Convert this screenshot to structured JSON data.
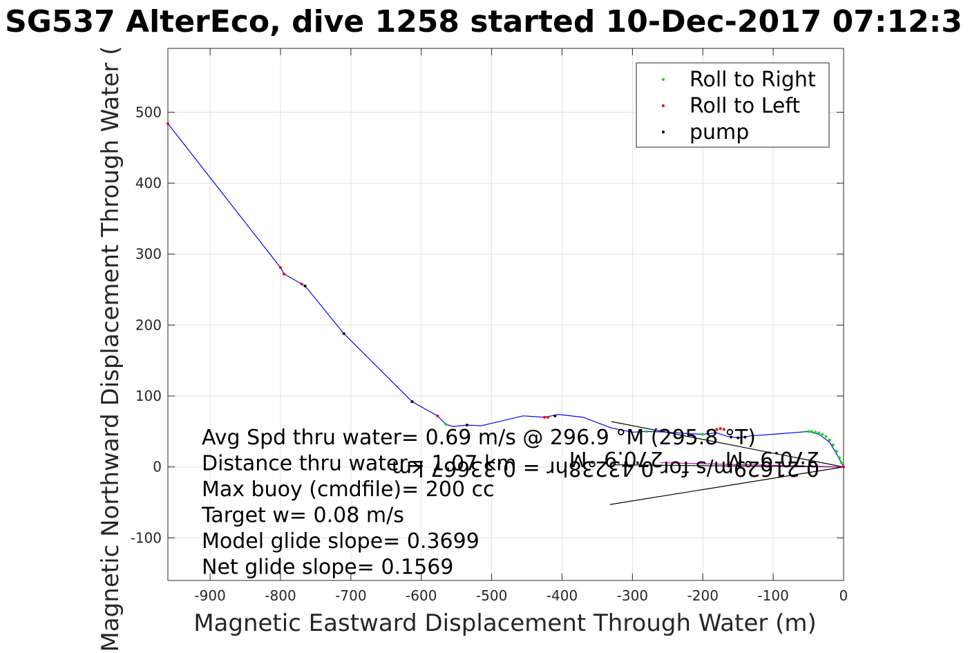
{
  "chart_data": {
    "type": "line",
    "title": "SG537 AlterEco, dive 1258 started 10-Dec-2017 07:12:3",
    "xlabel": "Magnetic Eastward Displacement Through Water (m)",
    "ylabel": "Magnetic Northward Displacement Through Water (",
    "xlim": [
      -960,
      0
    ],
    "ylim": [
      -160,
      590
    ],
    "xticks": [
      -900,
      -800,
      -700,
      -600,
      -500,
      -400,
      -300,
      -200,
      -100,
      0
    ],
    "yticks": [
      -100,
      0,
      100,
      200,
      300,
      400,
      500
    ],
    "grid": true,
    "legend_position": "top-right",
    "legend": [
      {
        "label": "Roll to Right",
        "color": "#00dd00"
      },
      {
        "label": "Roll to Left",
        "color": "#ee0000"
      },
      {
        "label": "pump",
        "color": "#000000"
      }
    ],
    "track": {
      "name": "track",
      "color": "#0000ff",
      "x": [
        -960,
        -800,
        -795,
        -770,
        -765,
        -710,
        -613,
        -577,
        -565,
        -555,
        -535,
        -515,
        -455,
        -425,
        -405,
        -370,
        -330,
        -300,
        -280,
        -250,
        -220,
        -200,
        -180,
        -165,
        -150,
        -130,
        -100,
        -75,
        -50,
        -35,
        -20,
        -8,
        0
      ],
      "y": [
        484,
        281,
        272,
        258,
        255,
        188,
        92,
        72,
        60,
        57,
        59,
        58,
        72,
        70,
        74,
        70,
        55,
        49,
        50,
        49,
        47,
        46,
        48,
        43,
        41,
        44,
        46,
        48,
        50,
        46,
        35,
        15,
        0
      ]
    },
    "roll_right_points": {
      "x": [
        -565,
        -290,
        -280,
        -200,
        -50,
        -45,
        -40,
        -35,
        -30,
        -25,
        -20,
        -15,
        -10,
        -6,
        -3
      ],
      "y": [
        60,
        49,
        50,
        46,
        50,
        50,
        49,
        48,
        46,
        43,
        38,
        31,
        22,
        13,
        6
      ]
    },
    "roll_left_points": {
      "x": [
        -960,
        -800,
        -795,
        -770,
        -577,
        -425,
        -420,
        -255,
        -180,
        -175,
        -170,
        0
      ],
      "y": [
        484,
        281,
        272,
        258,
        72,
        70,
        70,
        52,
        53,
        54,
        53,
        0
      ]
    },
    "pump_points": {
      "x": [
        -765,
        -710,
        -613,
        -535,
        -410,
        -160,
        -150,
        -140
      ],
      "y": [
        255,
        188,
        92,
        59,
        72,
        42,
        41,
        42
      ]
    },
    "current_lines": {
      "color": "#000000",
      "segments": [
        {
          "x": [
            0,
            -330
          ],
          "y": [
            0,
            64
          ]
        },
        {
          "x": [
            0,
            -332
          ],
          "y": [
            0,
            -53
          ]
        },
        {
          "x": [
            0,
            -325
          ],
          "y": [
            0,
            3
          ]
        }
      ],
      "magenta_segment": {
        "color": "#cc00cc",
        "x": [
          0,
          -260
        ],
        "y": [
          0,
          6
        ]
      }
    },
    "annotations": [
      "Avg Spd thru water=  0.69 m/s @ 296.9 °M (295.8 °T)",
      "Distance thru water= 1.07 km",
      "Max buoy (cmdfile)= 200 cc",
      "Target w= 0.08 m/s",
      "Model glide slope= 0.3699",
      "Net glide slope= 0.1569"
    ],
    "mirrored_annotations": [
      "0.21629m/s for 0.43238hr = 0.33667 km",
      "270.9 °M",
      "270.9 °M"
    ]
  }
}
